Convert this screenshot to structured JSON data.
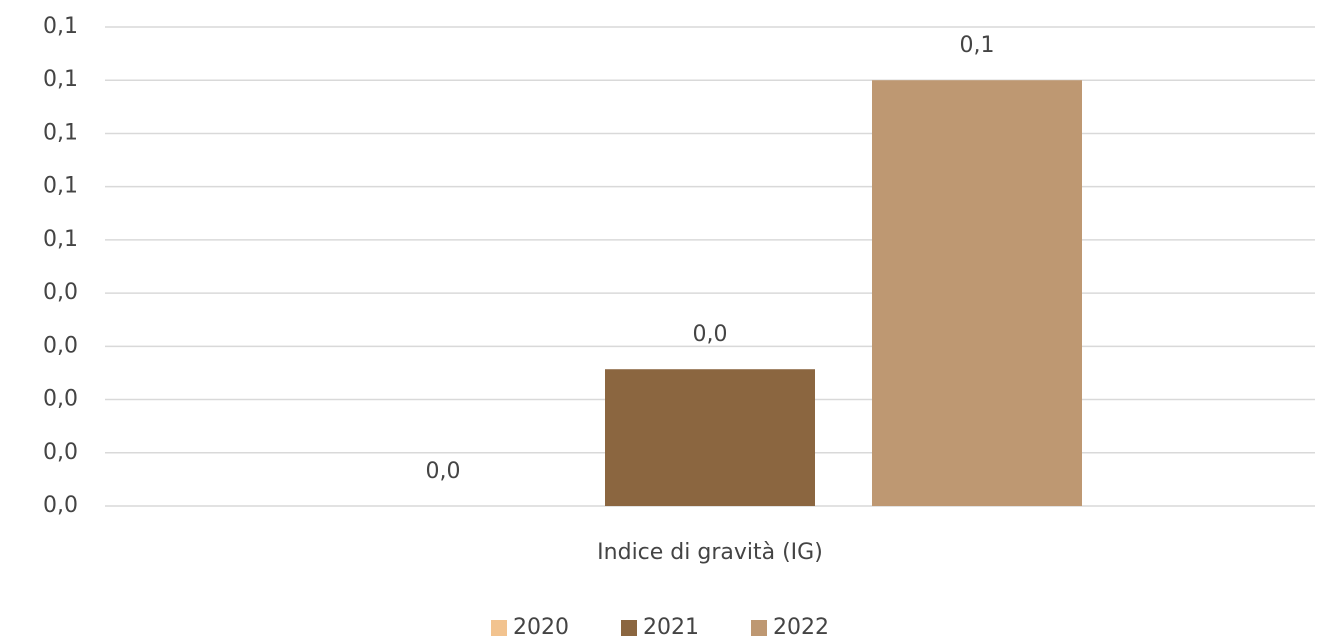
{
  "chart_data": {
    "type": "bar",
    "categories": [
      "Indice di gravità (IG)"
    ],
    "series": [
      {
        "name": "2020",
        "color": "#f2c38f",
        "values": [
          0
        ],
        "value_labels": [
          "0,0"
        ]
      },
      {
        "name": "2021",
        "color": "#8b6640",
        "values": [
          0.0257
        ],
        "value_labels": [
          "0,0"
        ]
      },
      {
        "name": "2022",
        "color": "#be9872",
        "values": [
          0.08
        ],
        "value_labels": [
          "0,1"
        ]
      }
    ],
    "ylim": [
      0,
      0.09
    ],
    "yticks": [
      {
        "value": 0,
        "label": "0,0"
      },
      {
        "value": 0.01,
        "label": "0,0"
      },
      {
        "value": 0.02,
        "label": "0,0"
      },
      {
        "value": 0.03,
        "label": "0,0"
      },
      {
        "value": 0.04,
        "label": "0,0"
      },
      {
        "value": 0.05,
        "label": "0,1"
      },
      {
        "value": 0.06,
        "label": "0,1"
      },
      {
        "value": 0.07,
        "label": "0,1"
      },
      {
        "value": 0.08,
        "label": "0,1"
      },
      {
        "value": 0.09,
        "label": "0,1"
      }
    ],
    "grid": true,
    "legend": "bottom"
  }
}
